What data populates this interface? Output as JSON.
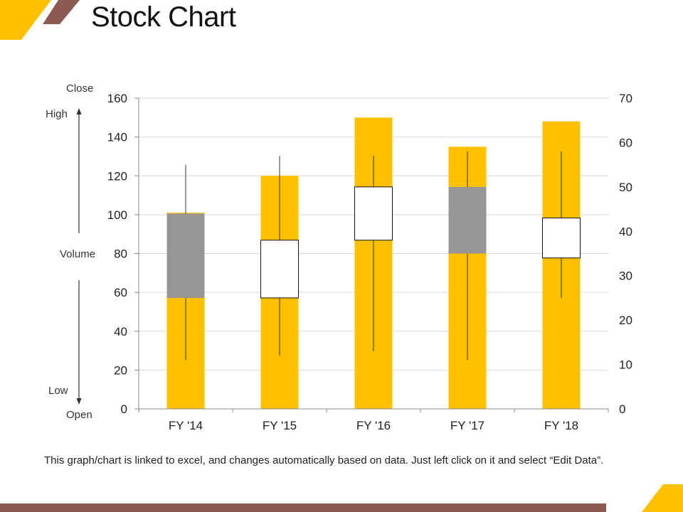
{
  "slide": {
    "title": "Stock Chart",
    "footnote": "This graph/chart is linked to excel, and changes automatically based on data. Just left click on it and select “Edit Data”."
  },
  "side_labels": {
    "close": "Close",
    "high": "High",
    "volume": "Volume",
    "low": "Low",
    "open": "Open"
  },
  "colors": {
    "accent_yellow": "#FFC000",
    "accent_brown": "#8B5A52",
    "down_box": "#969696",
    "up_box": "#FFFFFF",
    "grid": "#D9D9D9"
  },
  "chart_data": {
    "type": "stock-volume-open-high-low-close",
    "categories": [
      "FY '14",
      "FY '15",
      "FY '16",
      "FY '17",
      "FY '18"
    ],
    "volume": [
      101,
      120,
      150,
      135,
      148
    ],
    "price": [
      {
        "open": 44,
        "high": 55,
        "low": 11,
        "close": 25
      },
      {
        "open": 25,
        "high": 57,
        "low": 12,
        "close": 38
      },
      {
        "open": 38,
        "high": 57,
        "low": 13,
        "close": 50
      },
      {
        "open": 50,
        "high": 58,
        "low": 11,
        "close": 35
      },
      {
        "open": 34,
        "high": 58,
        "low": 25,
        "close": 43
      }
    ],
    "y_left": {
      "min": 0,
      "max": 160,
      "ticks": [
        0,
        20,
        40,
        60,
        80,
        100,
        120,
        140,
        160
      ]
    },
    "y_right": {
      "min": 0,
      "max": 70,
      "ticks": [
        0,
        10,
        20,
        30,
        40,
        50,
        60,
        70
      ]
    },
    "grid": true
  }
}
